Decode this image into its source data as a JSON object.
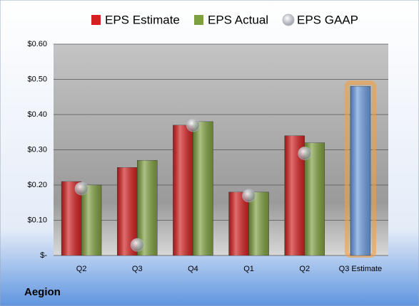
{
  "chart_data": {
    "type": "bar",
    "categories": [
      "Q2",
      "Q3",
      "Q4",
      "Q1",
      "Q2",
      "Q3 Estimate"
    ],
    "series": [
      {
        "name": "EPS Estimate",
        "color": "#d42020",
        "values": [
          0.21,
          0.25,
          0.37,
          0.18,
          0.34,
          null
        ]
      },
      {
        "name": "EPS Actual",
        "color": "#7fa040",
        "values": [
          0.2,
          0.27,
          0.38,
          0.18,
          0.32,
          null
        ]
      },
      {
        "name": "EPS GAAP",
        "color": "#b8bcc4",
        "marker": "sphere",
        "values": [
          0.19,
          0.03,
          0.37,
          0.17,
          0.29,
          null
        ]
      },
      {
        "color": "#6d9de0",
        "glow": "#f4a040",
        "values": [
          null,
          null,
          null,
          null,
          null,
          0.48
        ]
      }
    ],
    "ylim": [
      0,
      0.6
    ],
    "yticks": [
      {
        "value": 0,
        "label": "$-"
      },
      {
        "value": 0.1,
        "label": "$0.10"
      },
      {
        "value": 0.2,
        "label": "$0.20"
      },
      {
        "value": 0.3,
        "label": "$0.30"
      },
      {
        "value": 0.4,
        "label": "$0.40"
      },
      {
        "value": 0.5,
        "label": "$0.50"
      },
      {
        "value": 0.6,
        "label": "$0.60"
      }
    ],
    "grid": true,
    "footer": "Aegion"
  }
}
